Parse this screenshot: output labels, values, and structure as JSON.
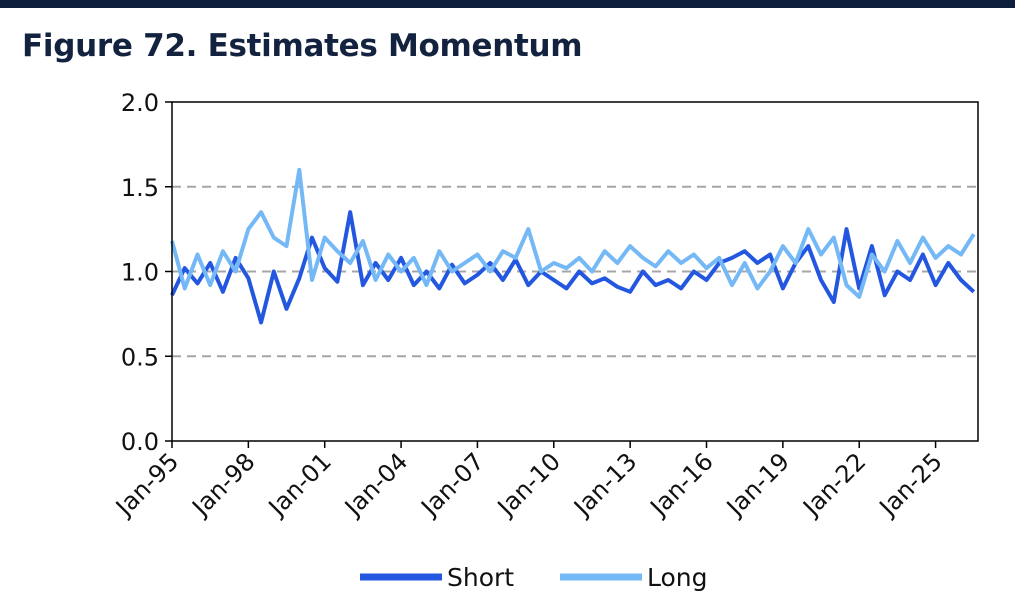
{
  "title": "Figure 72. Estimates Momentum",
  "chart_data": {
    "type": "line",
    "title": "Figure 72. Estimates Momentum",
    "xlabel": "",
    "ylabel": "",
    "ylim": [
      0,
      2
    ],
    "y_ticks": [
      "0.0",
      "0.5",
      "1.0",
      "1.5",
      "2.0"
    ],
    "x_ticks": [
      "Jan-95",
      "Jan-98",
      "Jan-01",
      "Jan-04",
      "Jan-07",
      "Jan-10",
      "Jan-13",
      "Jan-16",
      "Jan-19",
      "Jan-22",
      "Jan-25"
    ],
    "x_range": [
      "1995-01",
      "2026-09"
    ],
    "grid": "horizontal dashed",
    "legend": "bottom",
    "colors": {
      "Short": "#2457e0",
      "Long": "#74b8f5"
    },
    "x": [
      "1995-01",
      "1995-07",
      "1996-01",
      "1996-07",
      "1997-01",
      "1997-07",
      "1998-01",
      "1998-07",
      "1999-01",
      "1999-07",
      "2000-01",
      "2000-07",
      "2001-01",
      "2001-07",
      "2002-01",
      "2002-07",
      "2003-01",
      "2003-07",
      "2004-01",
      "2004-07",
      "2005-01",
      "2005-07",
      "2006-01",
      "2006-07",
      "2007-01",
      "2007-07",
      "2008-01",
      "2008-07",
      "2009-01",
      "2009-07",
      "2010-01",
      "2010-07",
      "2011-01",
      "2011-07",
      "2012-01",
      "2012-07",
      "2013-01",
      "2013-07",
      "2014-01",
      "2014-07",
      "2015-01",
      "2015-07",
      "2016-01",
      "2016-07",
      "2017-01",
      "2017-07",
      "2018-01",
      "2018-07",
      "2019-01",
      "2019-07",
      "2020-01",
      "2020-07",
      "2021-01",
      "2021-07",
      "2022-01",
      "2022-07",
      "2023-01",
      "2023-07",
      "2024-01",
      "2024-07",
      "2025-01",
      "2025-07",
      "2026-01",
      "2026-07"
    ],
    "series": [
      {
        "name": "Short",
        "values": [
          0.86,
          1.02,
          0.93,
          1.05,
          0.88,
          1.08,
          0.96,
          0.7,
          1.0,
          0.78,
          0.96,
          1.2,
          1.02,
          0.94,
          1.35,
          0.92,
          1.05,
          0.95,
          1.08,
          0.92,
          1.0,
          0.9,
          1.04,
          0.93,
          0.98,
          1.05,
          0.95,
          1.07,
          0.92,
          1.0,
          0.95,
          0.9,
          1.0,
          0.93,
          0.96,
          0.91,
          0.88,
          1.0,
          0.92,
          0.95,
          0.9,
          1.0,
          0.95,
          1.05,
          1.08,
          1.12,
          1.05,
          1.1,
          0.9,
          1.05,
          1.15,
          0.95,
          0.82,
          1.25,
          0.9,
          1.15,
          0.86,
          1.0,
          0.95,
          1.1,
          0.92,
          1.05,
          0.95,
          0.88
        ]
      },
      {
        "name": "Long",
        "values": [
          1.18,
          0.9,
          1.1,
          0.92,
          1.12,
          1.0,
          1.25,
          1.35,
          1.2,
          1.15,
          1.6,
          0.95,
          1.2,
          1.12,
          1.05,
          1.18,
          0.95,
          1.1,
          1.0,
          1.08,
          0.92,
          1.12,
          1.0,
          1.05,
          1.1,
          1.0,
          1.12,
          1.08,
          1.25,
          1.0,
          1.05,
          1.02,
          1.08,
          1.0,
          1.12,
          1.05,
          1.15,
          1.08,
          1.03,
          1.12,
          1.05,
          1.1,
          1.02,
          1.08,
          0.92,
          1.05,
          0.9,
          1.0,
          1.15,
          1.05,
          1.25,
          1.1,
          1.2,
          0.92,
          0.85,
          1.1,
          1.0,
          1.18,
          1.05,
          1.2,
          1.08,
          1.15,
          1.1,
          1.22
        ]
      }
    ]
  },
  "legend": {
    "short_label": "Short",
    "long_label": "Long"
  }
}
